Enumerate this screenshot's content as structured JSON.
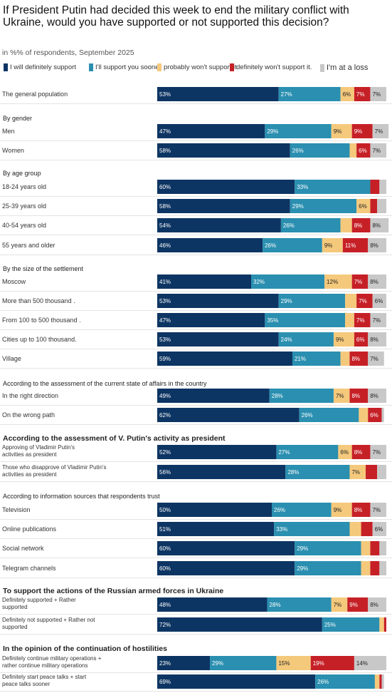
{
  "title": "If President Putin had decided this week to end the military conflict with Ukraine, would you have supported or not supported this decision?",
  "subtitle": "in %% of respondents, September 2025",
  "colors": [
    "#0d3563",
    "#2a8fb0",
    "#f5c97c",
    "#c62027",
    "#c8c8c8"
  ],
  "chart_data": {
    "type": "bar",
    "orientation": "horizontal",
    "stacked": true,
    "xlim": [
      0,
      100
    ],
    "legend_position": "top",
    "series": [
      {
        "name": "I will definitely support"
      },
      {
        "name": "I'll support you sooner"
      },
      {
        "name": "probably won't support it."
      },
      {
        "name": "definitely won't support it."
      },
      {
        "name": "I'm at a loss"
      }
    ],
    "groups": [
      {
        "label": "",
        "rows": [
          {
            "label": "The general population",
            "values": [
              53,
              27,
              6,
              7,
              7
            ],
            "labels": [
              "53%",
              "27%",
              "6%",
              "7%",
              "7%"
            ]
          }
        ]
      },
      {
        "label": "By gender",
        "rows": [
          {
            "label": "Men",
            "values": [
              47,
              29,
              9,
              9,
              7
            ],
            "labels": [
              "47%",
              "29%",
              "9%",
              "9%",
              "7%"
            ]
          },
          {
            "label": "Women",
            "values": [
              58,
              26,
              3,
              6,
              7
            ],
            "labels": [
              "58%",
              "26%",
              "",
              "6%",
              "7%"
            ]
          }
        ]
      },
      {
        "label": "By age group",
        "rows": [
          {
            "label": "18-24 years old",
            "values": [
              60,
              33,
              0,
              4,
              3
            ],
            "labels": [
              "60%",
              "33%",
              "",
              "",
              ""
            ]
          },
          {
            "label": "25-39 years old",
            "values": [
              58,
              29,
              6,
              3,
              4
            ],
            "labels": [
              "58%",
              "29%",
              "6%",
              "",
              ""
            ]
          },
          {
            "label": "40-54 years old",
            "values": [
              54,
              26,
              5,
              8,
              8
            ],
            "labels": [
              "54%",
              "26%",
              "",
              "8%",
              "8%"
            ]
          },
          {
            "label": "55 years and older",
            "values": [
              46,
              26,
              9,
              11,
              8
            ],
            "labels": [
              "46%",
              "26%",
              "9%",
              "11%",
              "8%"
            ]
          }
        ]
      },
      {
        "label": "By the size of the settlement",
        "rows": [
          {
            "label": "Moscow",
            "values": [
              41,
              32,
              12,
              7,
              8
            ],
            "labels": [
              "41%",
              "32%",
              "12%",
              "7%",
              "8%"
            ]
          },
          {
            "label": "More than 500 thousand .",
            "values": [
              53,
              29,
              5,
              7,
              6
            ],
            "labels": [
              "53%",
              "29%",
              "",
              "7%",
              "6%"
            ]
          },
          {
            "label": "From 100 to 500 thousand .",
            "values": [
              47,
              35,
              4,
              7,
              7
            ],
            "labels": [
              "47%",
              "35%",
              "",
              "7%",
              "7%"
            ]
          },
          {
            "label": "Cities up to 100 thousand.",
            "values": [
              53,
              24,
              9,
              6,
              8
            ],
            "labels": [
              "53%",
              "24%",
              "9%",
              "6%",
              "8%"
            ]
          },
          {
            "label": "Village",
            "values": [
              59,
              21,
              4,
              8,
              7
            ],
            "labels": [
              "59%",
              "21%",
              "",
              "8%",
              "7%"
            ]
          }
        ]
      },
      {
        "label": "According to the assessment of the current state of affairs in the country",
        "rows": [
          {
            "label": "In the right direction",
            "values": [
              49,
              28,
              7,
              8,
              8
            ],
            "labels": [
              "49%",
              "28%",
              "7%",
              "8%",
              "8%"
            ]
          },
          {
            "label": "On the wrong path",
            "values": [
              62,
              26,
              4,
              6,
              1
            ],
            "labels": [
              "62%",
              "26%",
              "",
              "6%",
              ""
            ]
          }
        ]
      },
      {
        "label": "According to the assessment of V. Putin's activity as president",
        "rows": [
          {
            "label": "Approving of Vladimir Putin's\nactivities as president",
            "values": [
              52,
              27,
              6,
              8,
              7
            ],
            "labels": [
              "52%",
              "27%",
              "6%",
              "8%",
              "7%"
            ]
          },
          {
            "label": "Those who disapprove of Vladimir Putin's\nactivities as president",
            "values": [
              56,
              28,
              7,
              5,
              4
            ],
            "labels": [
              "56%",
              "28%",
              "7%",
              "",
              ""
            ]
          }
        ]
      },
      {
        "label": "According to information sources that respondents trust",
        "rows": [
          {
            "label": "Television",
            "values": [
              50,
              26,
              9,
              8,
              7
            ],
            "labels": [
              "50%",
              "26%",
              "9%",
              "8%",
              "7%"
            ]
          },
          {
            "label": "Online publications",
            "values": [
              51,
              33,
              5,
              5,
              6
            ],
            "labels": [
              "51%",
              "33%",
              "",
              "",
              "6%"
            ]
          },
          {
            "label": "Social network",
            "values": [
              60,
              29,
              4,
              4,
              3
            ],
            "labels": [
              "60%",
              "29%",
              "",
              "",
              ""
            ]
          },
          {
            "label": "Telegram channels",
            "values": [
              60,
              29,
              4,
              4,
              3
            ],
            "labels": [
              "60%",
              "29%",
              "",
              "",
              ""
            ]
          }
        ]
      },
      {
        "label": "To support the actions of the Russian armed forces in Ukraine",
        "rows": [
          {
            "label": "Definitely supported + Rather\nsupported",
            "values": [
              48,
              28,
              7,
              9,
              8
            ],
            "labels": [
              "48%",
              "28%",
              "7%",
              "9%",
              "8%"
            ]
          },
          {
            "label": "Definitely not supported + Rather not\nsupported",
            "values": [
              72,
              25,
              2,
              1,
              0
            ],
            "labels": [
              "72%",
              "25%",
              "",
              "",
              ""
            ]
          }
        ]
      },
      {
        "label": "In the opinion of the continuation of hostilities",
        "rows": [
          {
            "label": "Definitely continue military operations +\nrather continue military operations",
            "values": [
              23,
              29,
              15,
              19,
              14
            ],
            "labels": [
              "23%",
              "29%",
              "15%",
              "19%",
              "14%"
            ]
          },
          {
            "label": "Definitely start peace talks + start\npeace talks sooner",
            "values": [
              69,
              26,
              2,
              1,
              1
            ],
            "labels": [
              "69%",
              "26%",
              "",
              "",
              ""
            ]
          }
        ]
      }
    ]
  }
}
